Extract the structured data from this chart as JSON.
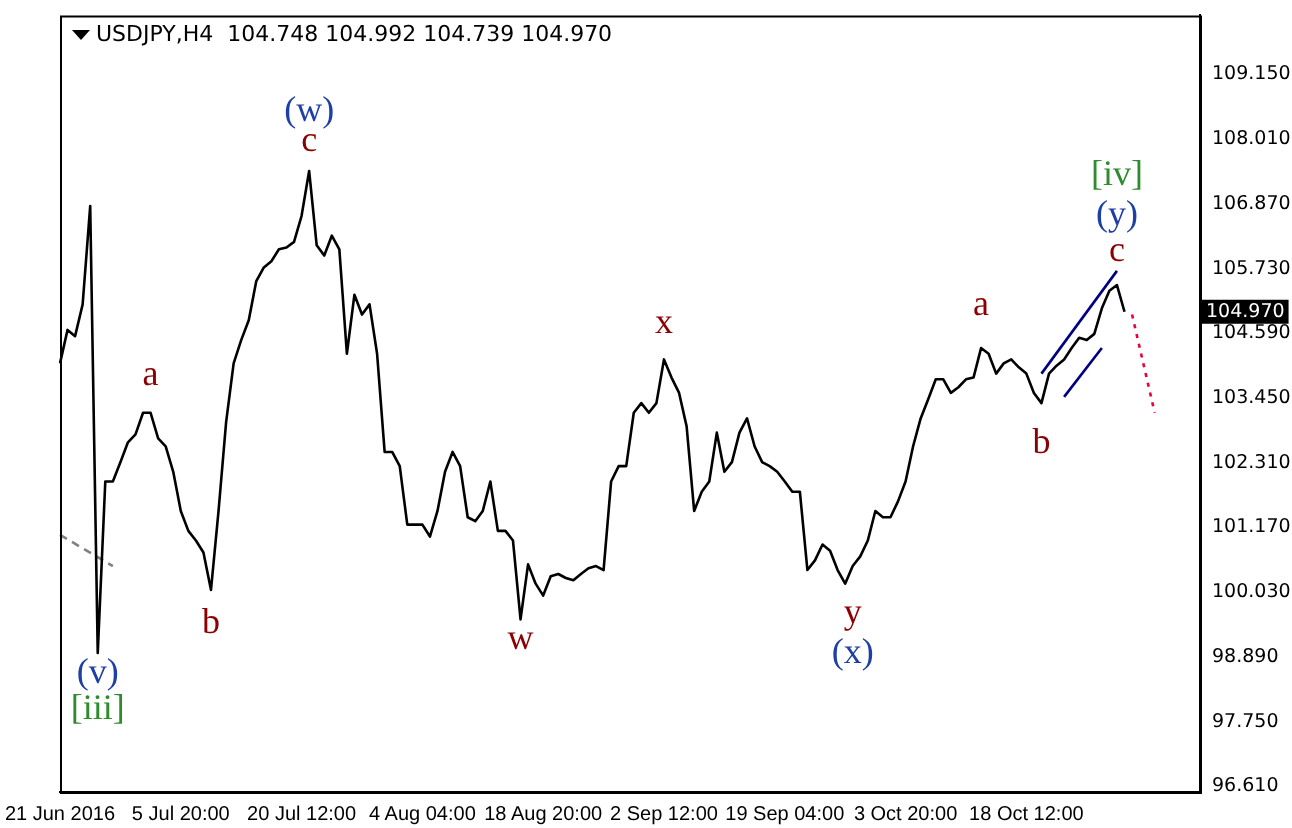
{
  "chart_data": {
    "type": "line",
    "title": "USDJPY,H4  104.748 104.992 104.739 104.970",
    "categories": [
      "21 Jun 2016",
      null,
      null,
      null,
      null,
      null,
      null,
      null,
      null,
      null,
      null,
      null,
      null,
      null,
      null,
      null,
      "5 Jul 20:00",
      null,
      null,
      null,
      null,
      null,
      null,
      null,
      null,
      null,
      null,
      null,
      null,
      null,
      null,
      null,
      "20 Jul 12:00",
      null,
      null,
      null,
      null,
      null,
      null,
      null,
      null,
      null,
      null,
      null,
      null,
      null,
      null,
      null,
      "4 Aug 04:00",
      null,
      null,
      null,
      null,
      null,
      null,
      null,
      null,
      null,
      null,
      null,
      null,
      null,
      null,
      null,
      "18 Aug 20:00",
      null,
      null,
      null,
      null,
      null,
      null,
      null,
      null,
      null,
      null,
      null,
      null,
      null,
      null,
      null,
      "2 Sep 12:00",
      null,
      null,
      null,
      null,
      null,
      null,
      null,
      null,
      null,
      null,
      null,
      null,
      null,
      null,
      null,
      "19 Sep 04:00",
      null,
      null,
      null,
      null,
      null,
      null,
      null,
      null,
      null,
      null,
      null,
      null,
      null,
      null,
      null,
      "3 Oct 20:00",
      null,
      null,
      null,
      null,
      null,
      null,
      null,
      null,
      null,
      null,
      null,
      null,
      null,
      null,
      null,
      "18 Oct 12:00",
      null,
      null,
      null,
      null,
      null,
      null,
      null,
      null,
      null,
      null,
      null,
      null,
      null,
      null,
      null,
      null,
      null,
      null,
      null,
      null,
      null,
      null,
      null
    ],
    "series": [
      {
        "color": "#000000",
        "values": [
          104.06,
          104.65,
          104.54,
          105.1,
          106.83,
          98.96,
          101.98,
          101.98,
          102.32,
          102.67,
          102.81,
          103.19,
          103.19,
          102.74,
          102.6,
          102.15,
          101.46,
          101.11,
          100.94,
          100.73,
          100.07,
          101.46,
          103.02,
          104.06,
          104.47,
          104.82,
          105.51,
          105.75,
          105.86,
          106.07,
          106.1,
          106.2,
          106.66,
          107.45,
          106.14,
          105.96,
          106.31,
          106.07,
          104.23,
          105.27,
          104.92,
          105.1,
          104.23,
          102.5,
          102.5,
          102.25,
          101.22,
          101.22,
          101.22,
          101.01,
          101.46,
          102.15,
          102.5,
          102.25,
          101.35,
          101.28,
          101.46,
          101.98,
          101.11,
          101.11,
          100.94,
          99.55,
          100.52,
          100.18,
          99.97,
          100.31,
          100.35,
          100.28,
          100.24,
          100.35,
          100.45,
          100.49,
          100.42,
          101.98,
          102.25,
          102.25,
          103.19,
          103.36,
          103.19,
          103.36,
          104.13,
          103.81,
          103.54,
          102.95,
          101.46,
          101.8,
          101.98,
          102.84,
          102.15,
          102.32,
          102.84,
          103.09,
          102.6,
          102.32,
          102.25,
          102.15,
          101.98,
          101.8,
          101.8,
          100.42,
          100.59,
          100.87,
          100.76,
          100.42,
          100.18,
          100.49,
          100.66,
          100.94,
          101.46,
          101.35,
          101.35,
          101.63,
          101.98,
          102.6,
          103.09,
          103.43,
          103.78,
          103.78,
          103.54,
          103.64,
          103.78,
          103.81,
          104.33,
          104.23,
          103.88,
          104.06,
          104.13,
          103.99,
          103.88,
          103.54,
          103.36,
          103.88,
          104.02,
          104.13,
          104.33,
          104.51,
          104.47,
          104.58,
          105.03,
          105.34,
          105.44,
          104.97,
          null,
          null,
          null,
          null,
          null,
          null,
          null,
          null,
          null,
          null
        ]
      },
      {
        "type": "line",
        "color": "#808080",
        "line_style": "dashed",
        "values": [
          101.04,
          null,
          null,
          null,
          null,
          null,
          null,
          100.49,
          null,
          null,
          null,
          null,
          null,
          null,
          null,
          null,
          null,
          null,
          null,
          null,
          null,
          null,
          null,
          null,
          null,
          null,
          null,
          null,
          null,
          null,
          null,
          null,
          null,
          null,
          null,
          null,
          null,
          null,
          null,
          null,
          null,
          null,
          null,
          null,
          null,
          null,
          null,
          null,
          null,
          null,
          null,
          null,
          null,
          null,
          null,
          null,
          null,
          null,
          null,
          null,
          null,
          null,
          null,
          null,
          null,
          null,
          null,
          null,
          null,
          null,
          null,
          null,
          null,
          null,
          null,
          null,
          null,
          null,
          null,
          null,
          null,
          null,
          null,
          null,
          null,
          null,
          null,
          null,
          null,
          null,
          null,
          null,
          null,
          null,
          null,
          null,
          null,
          null,
          null,
          null,
          null,
          null,
          null,
          null,
          null,
          null,
          null,
          null,
          null,
          null,
          null,
          null,
          null,
          null,
          null,
          null,
          null,
          null,
          null,
          null,
          null,
          null,
          null,
          null,
          null,
          null,
          null,
          null,
          null,
          null,
          null,
          null,
          null,
          null,
          null,
          null,
          null,
          null,
          null,
          null,
          null,
          null,
          null,
          null,
          null,
          null,
          null,
          null,
          null,
          null,
          null,
          null
        ]
      },
      {
        "type": "line",
        "color": "#000080",
        "values": [
          null,
          null,
          null,
          null,
          null,
          null,
          null,
          null,
          null,
          null,
          null,
          null,
          null,
          null,
          null,
          null,
          null,
          null,
          null,
          null,
          null,
          null,
          null,
          null,
          null,
          null,
          null,
          null,
          null,
          null,
          null,
          null,
          null,
          null,
          null,
          null,
          null,
          null,
          null,
          null,
          null,
          null,
          null,
          null,
          null,
          null,
          null,
          null,
          null,
          null,
          null,
          null,
          null,
          null,
          null,
          null,
          null,
          null,
          null,
          null,
          null,
          null,
          null,
          null,
          null,
          null,
          null,
          null,
          null,
          null,
          null,
          null,
          null,
          null,
          null,
          null,
          null,
          null,
          null,
          null,
          null,
          null,
          null,
          null,
          null,
          null,
          null,
          null,
          null,
          null,
          null,
          null,
          null,
          null,
          null,
          null,
          null,
          null,
          null,
          null,
          null,
          null,
          null,
          null,
          null,
          null,
          null,
          null,
          null,
          null,
          null,
          null,
          null,
          null,
          null,
          null,
          null,
          null,
          null,
          null,
          null,
          null,
          null,
          null,
          null,
          null,
          null,
          null,
          null,
          null,
          103.88,
          null,
          null,
          null,
          null,
          null,
          null,
          null,
          null,
          null,
          105.69,
          null,
          null,
          null,
          null,
          null,
          null,
          null,
          null,
          null,
          null,
          null
        ]
      },
      {
        "type": "line",
        "color": "#000080",
        "values": [
          null,
          null,
          null,
          null,
          null,
          null,
          null,
          null,
          null,
          null,
          null,
          null,
          null,
          null,
          null,
          null,
          null,
          null,
          null,
          null,
          null,
          null,
          null,
          null,
          null,
          null,
          null,
          null,
          null,
          null,
          null,
          null,
          null,
          null,
          null,
          null,
          null,
          null,
          null,
          null,
          null,
          null,
          null,
          null,
          null,
          null,
          null,
          null,
          null,
          null,
          null,
          null,
          null,
          null,
          null,
          null,
          null,
          null,
          null,
          null,
          null,
          null,
          null,
          null,
          null,
          null,
          null,
          null,
          null,
          null,
          null,
          null,
          null,
          null,
          null,
          null,
          null,
          null,
          null,
          null,
          null,
          null,
          null,
          null,
          null,
          null,
          null,
          null,
          null,
          null,
          null,
          null,
          null,
          null,
          null,
          null,
          null,
          null,
          null,
          null,
          null,
          null,
          null,
          null,
          null,
          null,
          null,
          null,
          null,
          null,
          null,
          null,
          null,
          null,
          null,
          null,
          null,
          null,
          null,
          null,
          null,
          null,
          null,
          null,
          null,
          null,
          null,
          null,
          null,
          null,
          null,
          null,
          null,
          103.47,
          null,
          null,
          null,
          null,
          104.33,
          null,
          null,
          null,
          null,
          null,
          null,
          null,
          null,
          null,
          null,
          null,
          null,
          null
        ]
      },
      {
        "type": "line",
        "color": "#e8003c",
        "line_style": "dotted",
        "values": [
          null,
          null,
          null,
          null,
          null,
          null,
          null,
          null,
          null,
          null,
          null,
          null,
          null,
          null,
          null,
          null,
          null,
          null,
          null,
          null,
          null,
          null,
          null,
          null,
          null,
          null,
          null,
          null,
          null,
          null,
          null,
          null,
          null,
          null,
          null,
          null,
          null,
          null,
          null,
          null,
          null,
          null,
          null,
          null,
          null,
          null,
          null,
          null,
          null,
          null,
          null,
          null,
          null,
          null,
          null,
          null,
          null,
          null,
          null,
          null,
          null,
          null,
          null,
          null,
          null,
          null,
          null,
          null,
          null,
          null,
          null,
          null,
          null,
          null,
          null,
          null,
          null,
          null,
          null,
          null,
          null,
          null,
          null,
          null,
          null,
          null,
          null,
          null,
          null,
          null,
          null,
          null,
          null,
          null,
          null,
          null,
          null,
          null,
          null,
          null,
          null,
          null,
          null,
          null,
          null,
          null,
          null,
          null,
          null,
          null,
          null,
          null,
          null,
          null,
          null,
          null,
          null,
          null,
          null,
          null,
          null,
          null,
          null,
          null,
          null,
          null,
          null,
          null,
          null,
          null,
          null,
          null,
          null,
          null,
          null,
          null,
          null,
          null,
          null,
          null,
          null,
          null,
          104.92,
          null,
          null,
          103.19,
          null,
          null,
          null,
          null,
          null,
          null
        ]
      }
    ],
    "ylim": [
      96.51,
      110.19
    ],
    "yticks": [
      {
        "value": 96.61,
        "label": "96.610"
      },
      {
        "value": 97.75,
        "label": "97.750"
      },
      {
        "value": 98.89,
        "label": "98.890"
      },
      {
        "value": 100.03,
        "label": "100.030"
      },
      {
        "value": 101.17,
        "label": "101.170"
      },
      {
        "value": 102.31,
        "label": "102.310"
      },
      {
        "value": 103.45,
        "label": "103.450"
      },
      {
        "value": 104.59,
        "label": "104.590"
      },
      {
        "value": 105.73,
        "label": "105.730"
      },
      {
        "value": 106.87,
        "label": "106.870"
      },
      {
        "value": 108.01,
        "label": "108.010"
      },
      {
        "value": 109.15,
        "label": "109.150"
      }
    ],
    "annotations": [
      "(v)",
      "[iii]",
      "a",
      "b",
      "c",
      "(w)",
      "w",
      "x",
      "y",
      "(x)",
      "a",
      "b",
      "c",
      "(y)",
      "[iv]",
      "104.970"
    ],
    "grid": false,
    "legend": false
  }
}
